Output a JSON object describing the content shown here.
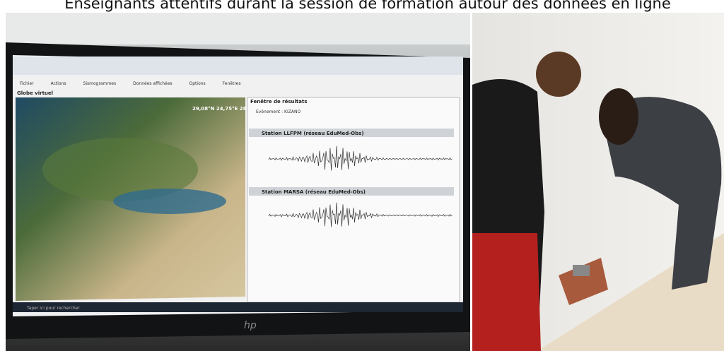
{
  "caption": "Enseignants attentifs durant la session de formation autour des données en ligne",
  "screen": {
    "menu": [
      "Fichier",
      "Actions",
      "Sismogrammes",
      "Données affichées",
      "Options",
      "Fenêtres"
    ],
    "globe_label": "Globe virtuel",
    "coords": "29,08°N 24,75°E 28m",
    "results_title": "Fenêtre de résultats",
    "event": "Evénement : KIZANO",
    "stations": [
      "Station LLFPM (réseau EduMed-Obs)",
      "Station MARSA (réseau EduMed-Obs)"
    ],
    "taskbar_search": "Taper ici pour rechercher"
  },
  "monitor_brand": "hp"
}
